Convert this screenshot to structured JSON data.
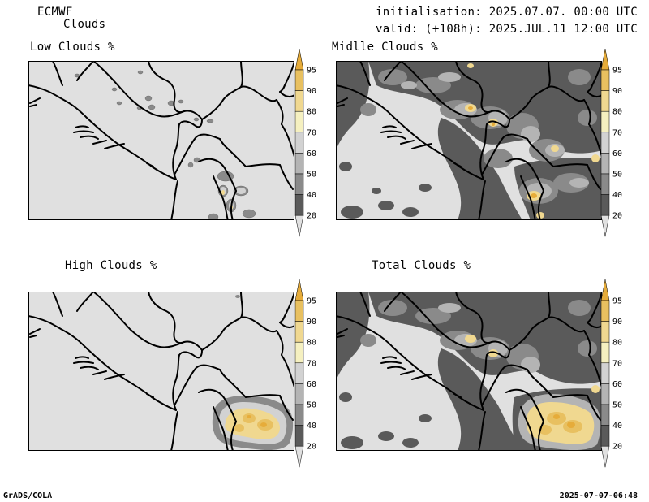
{
  "header": {
    "model": "ECMWF",
    "product": "Clouds",
    "init": "initialisation: 2025.07.07. 00:00 UTC",
    "valid": "valid: (+108h): 2025.JUL.11 12:00 UTC"
  },
  "panels": [
    {
      "key": "low",
      "title": "Low Clouds %"
    },
    {
      "key": "mid",
      "title": "Midlle Clouds %"
    },
    {
      "key": "high",
      "title": "High Clouds %"
    },
    {
      "key": "total",
      "title": "Total Clouds %"
    }
  ],
  "colorbar": {
    "levels": [
      "20",
      "40",
      "50",
      "60",
      "70",
      "80",
      "90",
      "95"
    ],
    "colors": [
      "#e0e0e0",
      "#5a5a5a",
      "#8a8a8a",
      "#b4b4b4",
      "#d2d2d2",
      "#f5f0c0",
      "#f0d890",
      "#e8c060",
      "#e6ac3a"
    ]
  },
  "footer": {
    "left": "GrADS/COLA",
    "right": "2025-07-07-06:48"
  }
}
